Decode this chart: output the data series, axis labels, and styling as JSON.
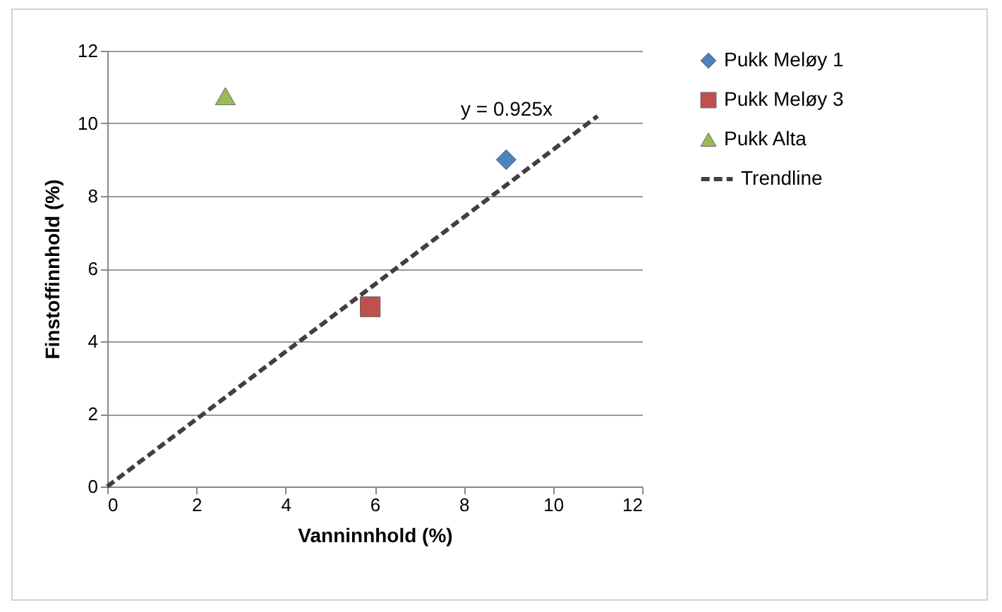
{
  "chart_data": {
    "type": "scatter",
    "xlabel": "Vanninnhold (%)",
    "ylabel": "Finstoffinnhold (%)",
    "xlim": [
      0,
      12
    ],
    "xticks": [
      0,
      2,
      4,
      6,
      8,
      10,
      12
    ],
    "ylim": [
      0,
      12
    ],
    "yticks": [
      0,
      2,
      4,
      6,
      8,
      10,
      12
    ],
    "grid": "y",
    "legend": "right",
    "series": [
      {
        "name": "Pukk Meløy 1",
        "color": "#4f81bd",
        "marker": "diamond",
        "x": [
          8.95
        ],
        "values": [
          9.0
        ]
      },
      {
        "name": "Pukk Meløy 3",
        "color": "#c0504d",
        "marker": "square",
        "x": [
          5.9
        ],
        "values": [
          4.95
        ]
      },
      {
        "name": "Pukk Alta",
        "color": "#9bbb59",
        "marker": "triangle",
        "x": [
          2.65
        ],
        "values": [
          10.75
        ]
      },
      {
        "name": "Trendline",
        "type": "line",
        "color": "#404040",
        "line_style": "dashed",
        "x": [
          0,
          11
        ],
        "values": [
          0,
          10.2
        ]
      }
    ],
    "annotations": [
      "y = 0.925x"
    ]
  }
}
